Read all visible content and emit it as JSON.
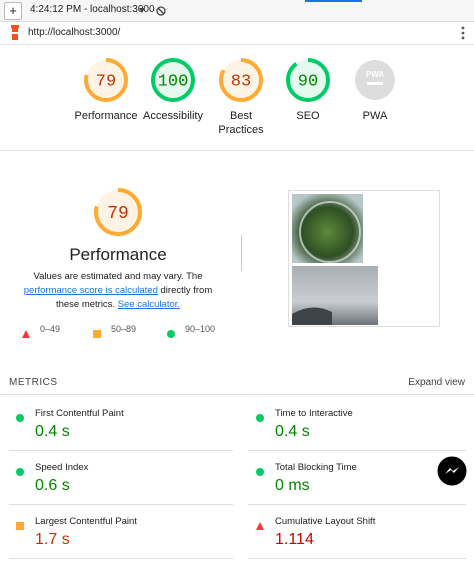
{
  "toolbar": {
    "new_tab": "+",
    "title": "4:24:12 PM - localhost:3000",
    "url": "http://localhost:3000/"
  },
  "gauges": [
    {
      "label": "Performance",
      "score": 79,
      "rating": "average"
    },
    {
      "label": "Accessibility",
      "score": 100,
      "rating": "pass"
    },
    {
      "label": "Best Practices",
      "score": 83,
      "rating": "average"
    },
    {
      "label": "SEO",
      "score": 90,
      "rating": "pass"
    },
    {
      "label": "PWA",
      "badge": "PWA",
      "rating": "na"
    }
  ],
  "performance": {
    "score": 79,
    "rating": "average",
    "title": "Performance",
    "description": {
      "text1": "Values are estimated and may vary. The ",
      "link1": "performance score is calculated",
      "text2": " directly from these metrics. ",
      "link2": "See calculator."
    },
    "legend": [
      "0–49",
      "50–89",
      "90–100"
    ]
  },
  "metrics": {
    "heading": "METRICS",
    "expand": "Expand view",
    "items": [
      {
        "label": "First Contentful Paint",
        "value": "0.4 s",
        "rating": "pass"
      },
      {
        "label": "Time to Interactive",
        "value": "0.4 s",
        "rating": "pass"
      },
      {
        "label": "Speed Index",
        "value": "0.6 s",
        "rating": "pass"
      },
      {
        "label": "Total Blocking Time",
        "value": "0 ms",
        "rating": "pass"
      },
      {
        "label": "Largest Contentful Paint",
        "value": "1.7 s",
        "rating": "average"
      },
      {
        "label": "Cumulative Layout Shift",
        "value": "1.114",
        "rating": "fail"
      }
    ]
  }
}
